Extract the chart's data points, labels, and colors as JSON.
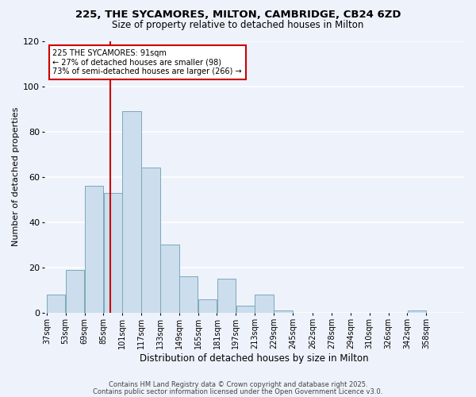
{
  "title1": "225, THE SYCAMORES, MILTON, CAMBRIDGE, CB24 6ZD",
  "title2": "Size of property relative to detached houses in Milton",
  "xlabel": "Distribution of detached houses by size in Milton",
  "ylabel": "Number of detached properties",
  "bar_color": "#ccdded",
  "bar_edge_color": "#7aaabb",
  "bin_labels": [
    "37sqm",
    "53sqm",
    "69sqm",
    "85sqm",
    "101sqm",
    "117sqm",
    "133sqm",
    "149sqm",
    "165sqm",
    "181sqm",
    "197sqm",
    "213sqm",
    "229sqm",
    "245sqm",
    "262sqm",
    "278sqm",
    "294sqm",
    "310sqm",
    "326sqm",
    "342sqm",
    "358sqm"
  ],
  "bin_edges": [
    37,
    53,
    69,
    85,
    101,
    117,
    133,
    149,
    165,
    181,
    197,
    213,
    229,
    245,
    262,
    278,
    294,
    310,
    326,
    342,
    358,
    374
  ],
  "bar_heights": [
    8,
    19,
    56,
    53,
    89,
    64,
    30,
    16,
    6,
    15,
    3,
    8,
    1,
    0,
    0,
    0,
    0,
    0,
    0,
    1,
    0
  ],
  "ylim": [
    0,
    120
  ],
  "yticks": [
    0,
    20,
    40,
    60,
    80,
    100,
    120
  ],
  "property_line_x": 91,
  "property_line_color": "#cc0000",
  "annotation_line1": "225 THE SYCAMORES: 91sqm",
  "annotation_line2": "← 27% of detached houses are smaller (98)",
  "annotation_line3": "73% of semi-detached houses are larger (266) →",
  "footer1": "Contains HM Land Registry data © Crown copyright and database right 2025.",
  "footer2": "Contains public sector information licensed under the Open Government Licence v3.0.",
  "background_color": "#eef2fb",
  "grid_color": "#ffffff"
}
